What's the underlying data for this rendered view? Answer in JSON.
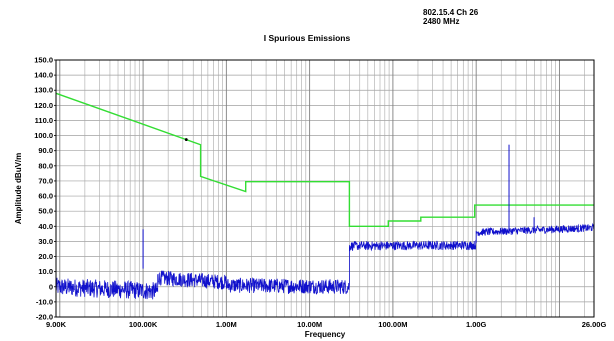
{
  "header": {
    "line1": "802.15.4 Ch 26",
    "line2": "2480 MHz"
  },
  "chart_data": {
    "type": "line",
    "title": "I Spurious Emissions",
    "xlabel": "Frequency",
    "ylabel": "Amplitude dBuV/m",
    "x_scale": "log",
    "xlim": [
      9000,
      26000000000
    ],
    "ylim": [
      -20,
      150
    ],
    "grid": true,
    "x_ticks": [
      {
        "value": 9000,
        "label": "9.00K"
      },
      {
        "value": 100000,
        "label": "100.00K"
      },
      {
        "value": 1000000,
        "label": "1.00M"
      },
      {
        "value": 10000000,
        "label": "10.00M"
      },
      {
        "value": 100000000,
        "label": "100.00M"
      },
      {
        "value": 1000000000,
        "label": "1.00G"
      },
      {
        "value": 26000000000,
        "label": "26.00G"
      }
    ],
    "y_ticks": [
      {
        "value": 150,
        "label": "150.0"
      },
      {
        "value": 140,
        "label": "140.0"
      },
      {
        "value": 130,
        "label": "130.0"
      },
      {
        "value": 120,
        "label": "120.0"
      },
      {
        "value": 110,
        "label": "110.0"
      },
      {
        "value": 100,
        "label": "100.0"
      },
      {
        "value": 90,
        "label": "90.0"
      },
      {
        "value": 80,
        "label": "80.0"
      },
      {
        "value": 70,
        "label": "70.0"
      },
      {
        "value": 60,
        "label": "60.0"
      },
      {
        "value": 50,
        "label": "50.0"
      },
      {
        "value": 40,
        "label": "40.0"
      },
      {
        "value": 30,
        "label": "30.0"
      },
      {
        "value": 20,
        "label": "20.0"
      },
      {
        "value": 10,
        "label": "10.0"
      },
      {
        "value": 0,
        "label": "0"
      },
      {
        "value": -10,
        "label": "-10.0"
      },
      {
        "value": -20,
        "label": "-20.0"
      }
    ],
    "series": [
      {
        "color": "#33dd33",
        "kind": "limit",
        "points": [
          [
            9000,
            128
          ],
          [
            490000,
            94
          ],
          [
            490000,
            73
          ],
          [
            1705000,
            63
          ],
          [
            1705000,
            69.5
          ],
          [
            30000000,
            69.5
          ],
          [
            30000000,
            40
          ],
          [
            88000000,
            40
          ],
          [
            88000000,
            43.5
          ],
          [
            216000000,
            43.5
          ],
          [
            216000000,
            46
          ],
          [
            960000000,
            46
          ],
          [
            960000000,
            54
          ],
          [
            26000000000,
            54
          ]
        ]
      },
      {
        "color": "#1010cc",
        "kind": "measurement",
        "segments": [
          {
            "from": 9000,
            "to": 150000,
            "level_start": 0,
            "level_end": -3,
            "noise": 6
          },
          {
            "from": 150000,
            "to": 1000000,
            "level_start": 6,
            "level_end": 3,
            "noise": 5
          },
          {
            "from": 1000000,
            "to": 30000000,
            "level_start": 1,
            "level_end": 0,
            "noise": 5
          },
          {
            "from": 30000000,
            "to": 1000000000,
            "level_start": 27,
            "level_end": 27.5,
            "noise": 3
          },
          {
            "from": 1000000000,
            "to": 26000000000,
            "level_start": 36,
            "level_end": 39,
            "noise": 2.5
          }
        ],
        "peaks": [
          {
            "x": 2480000000,
            "y": 94
          },
          {
            "x": 4960000000,
            "y": 46
          },
          {
            "x": 100000,
            "y": 12
          }
        ]
      }
    ]
  }
}
